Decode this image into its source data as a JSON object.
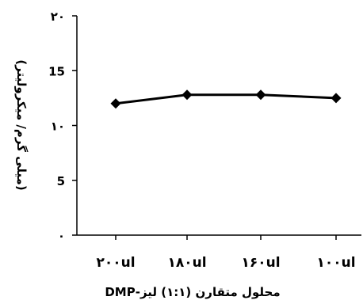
{
  "chart_data": {
    "type": "line",
    "categories": [
      "۲۰۰ul",
      "۱۸۰ul",
      "۱۶۰ul",
      "۱۰۰ul"
    ],
    "series": [
      {
        "values": [
          12.0,
          12.8,
          12.8,
          12.5
        ]
      }
    ],
    "ylim": [
      0,
      20
    ],
    "y_ticks": [
      0,
      5,
      10,
      15,
      20
    ],
    "y_tick_labels": [
      "۰",
      "5",
      "۱۰",
      "15",
      "۲۰"
    ],
    "xlabel": "محلول متقارن (۱:۱) لیز-DMP",
    "ylabel": "(میلی گرم/ میکرولیتر)",
    "grid": false,
    "legend": "none",
    "marker": "diamond",
    "colors": {
      "line": "#000000",
      "marker": "#000000",
      "axis": "#000000"
    }
  }
}
